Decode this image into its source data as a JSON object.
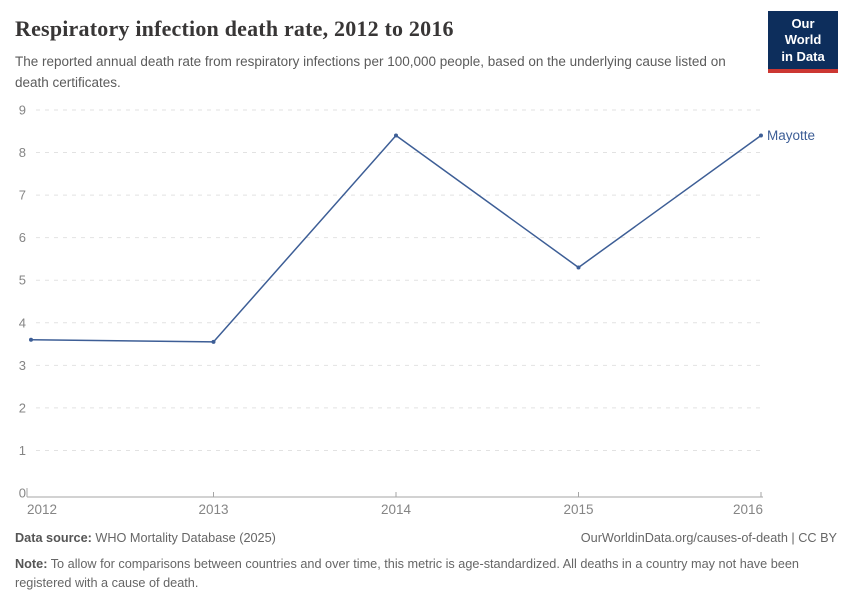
{
  "header": {
    "title": "Respiratory infection death rate, 2012 to 2016",
    "subtitle": "The reported annual death rate from respiratory infections per 100,000 people, based on the underlying cause listed on death certificates.",
    "logo": {
      "line1": "Our World",
      "line2": "in Data"
    }
  },
  "chart_data": {
    "type": "line",
    "title": "Respiratory infection death rate, 2012 to 2016",
    "x": [
      2012,
      2013,
      2014,
      2015,
      2016
    ],
    "xticks": [
      "2012",
      "2013",
      "2014",
      "2015",
      "2016"
    ],
    "yticks": [
      0,
      1,
      2,
      3,
      4,
      5,
      6,
      7,
      8,
      9
    ],
    "ylim": [
      0,
      9
    ],
    "xlim": [
      2012,
      2016
    ],
    "grid": "horizontal-dashed",
    "legend_position": "end-of-line-label",
    "series": [
      {
        "name": "Mayotte",
        "color": "#3d5e96",
        "values": [
          3.6,
          3.55,
          8.4,
          5.3,
          8.4
        ]
      }
    ]
  },
  "footer": {
    "datasource_label": "Data source:",
    "datasource_value": " WHO Mortality Database (2025)",
    "attribution": "OurWorldinData.org/causes-of-death | CC BY",
    "note_label": "Note:",
    "note_value": " To allow for comparisons between countries and over time, this metric is age-standardized. All deaths in a country may not have been registered with a cause of death."
  },
  "colors": {
    "line": "#3d5e96",
    "grid": "#e2e2e2",
    "axis": "#a5a5a5",
    "tick_text": "#858585",
    "logo_bg": "#0d2e5c",
    "logo_stripe": "#cc3732"
  }
}
